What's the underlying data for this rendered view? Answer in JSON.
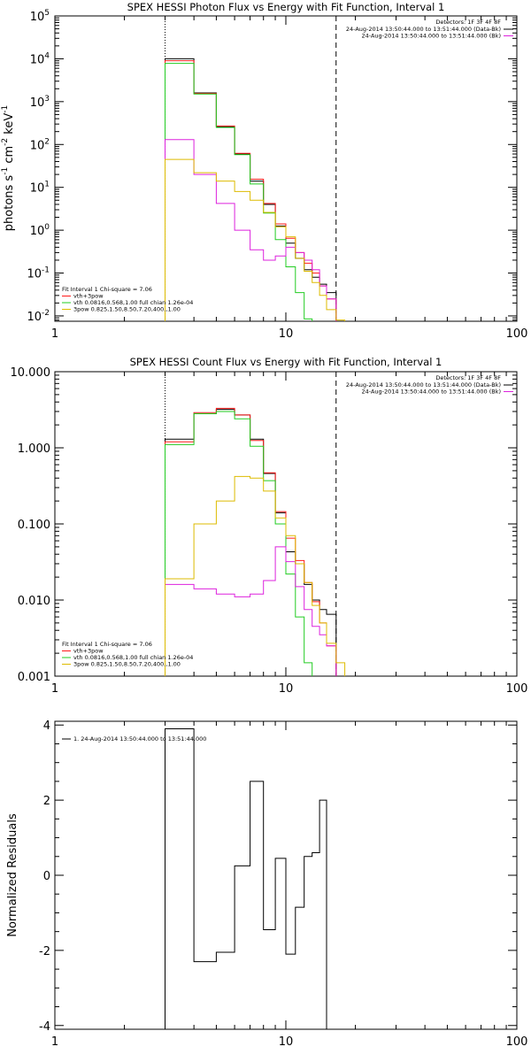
{
  "chart_data": [
    {
      "type": "line",
      "title": "SPEX HESSI Photon Flux vs Energy with Fit Function, Interval 1",
      "xlabel": "",
      "ylabel": "photons s",
      "ylabel_sup": [
        "-1",
        "-2",
        "-1"
      ],
      "ylabel_parts": [
        "cm",
        "keV"
      ],
      "xscale": "log",
      "yscale": "log",
      "xlim": [
        1,
        100
      ],
      "ylim": [
        0.0075,
        100000
      ],
      "xticks": [
        {
          "value": 1,
          "label": "1"
        },
        {
          "value": 10,
          "label": "10"
        },
        {
          "value": 100,
          "label": "100"
        }
      ],
      "yticks": [
        {
          "value": 0.01,
          "base": "10",
          "exp": "-2"
        },
        {
          "value": 0.1,
          "base": "10",
          "exp": "-1"
        },
        {
          "value": 1,
          "base": "10",
          "exp": "0"
        },
        {
          "value": 10,
          "base": "10",
          "exp": "1"
        },
        {
          "value": 100,
          "base": "10",
          "exp": "2"
        },
        {
          "value": 1000,
          "base": "10",
          "exp": "3"
        },
        {
          "value": 10000,
          "base": "10",
          "exp": "4"
        },
        {
          "value": 100000,
          "base": "10",
          "exp": "5"
        }
      ],
      "vlines": [
        {
          "x": 3.0,
          "style": "dotted",
          "color": "#000000"
        },
        {
          "x": 16.5,
          "style": "dashed",
          "color": "#000000"
        }
      ],
      "bin_edges": [
        3.0,
        4.0,
        5.0,
        6.0,
        7.0,
        8.0,
        9.0,
        10.0,
        11.0,
        12.0,
        13.0,
        14.0,
        15.0,
        16.5,
        18.0
      ],
      "series": [
        {
          "name": "",
          "color": "#000000",
          "values": [
            10000,
            1600,
            260,
            60,
            14,
            4,
            1.25,
            0.5,
            0.22,
            0.12,
            0.08,
            0.055,
            0.035,
            null
          ]
        },
        {
          "name": "",
          "color": "#ff1a1a",
          "values": [
            9000,
            1550,
            270,
            62,
            15.5,
            4.2,
            1.4,
            0.65,
            0.3,
            0.17,
            0.1,
            0.05,
            0.025,
            null
          ]
        },
        {
          "name": "",
          "color": "#22cc22",
          "values": [
            7800,
            1500,
            250,
            58,
            12,
            2.5,
            0.6,
            0.14,
            0.035,
            0.0085,
            null,
            null,
            null,
            null
          ]
        },
        {
          "name": "",
          "color": "#dd22dd",
          "values": [
            130,
            20,
            4.2,
            1.0,
            0.35,
            0.2,
            0.25,
            0.4,
            0.3,
            0.2,
            0.12,
            0.05,
            0.025,
            null
          ]
        },
        {
          "name": "",
          "color": "#ddbb00",
          "values": [
            45,
            22,
            14,
            8,
            5,
            2.6,
            1.2,
            0.7,
            0.22,
            0.11,
            0.06,
            0.03,
            0.014,
            0.008
          ]
        }
      ],
      "legend_right": {
        "header": "Detectors: 1F 3F 4F 8F",
        "lines": [
          {
            "text": "24-Aug-2014 13:50:44.000 to 13:51:44.000 (Data-Bk)",
            "color": "#000000"
          },
          {
            "text": "24-Aug-2014 13:50:44.000 to 13:51:44.000 (Bk)",
            "color": "#dd22dd"
          }
        ]
      },
      "legend_left": {
        "header": "Fit Interval  1    Chi-square = 7.06",
        "lines": [
          {
            "text": "vth+3pow",
            "color": "#ff1a1a"
          },
          {
            "text": "vth 0.0816,0.568,1.00  full chian 1.26e-04",
            "color": "#22cc22"
          },
          {
            "text": "3pow 0.825,1.50,8.50,7.20,400.,1.00",
            "color": "#ddbb00"
          }
        ]
      }
    },
    {
      "type": "line",
      "title": "SPEX HESSI Count Flux vs Energy with Fit Function, Interval 1",
      "xlabel": "",
      "ylabel": "",
      "xscale": "log",
      "yscale": "log",
      "xlim": [
        1,
        100
      ],
      "ylim": [
        0.001,
        10
      ],
      "xticks": [
        {
          "value": 1,
          "label": "1"
        },
        {
          "value": 10,
          "label": "10"
        },
        {
          "value": 100,
          "label": "100"
        }
      ],
      "yticks": [
        {
          "value": 0.001,
          "label": "0.001"
        },
        {
          "value": 0.01,
          "label": "0.010"
        },
        {
          "value": 0.1,
          "label": "0.100"
        },
        {
          "value": 1,
          "label": "1.000"
        },
        {
          "value": 10,
          "label": "10.000"
        }
      ],
      "vlines": [
        {
          "x": 3.0,
          "style": "dotted",
          "color": "#000000"
        },
        {
          "x": 16.5,
          "style": "dashed",
          "color": "#000000"
        }
      ],
      "bin_edges": [
        3.0,
        4.0,
        5.0,
        6.0,
        7.0,
        8.0,
        9.0,
        10.0,
        11.0,
        12.0,
        13.0,
        14.0,
        15.0,
        16.5,
        18.0
      ],
      "series": [
        {
          "name": "",
          "color": "#000000",
          "values": [
            1.3,
            2.8,
            3.2,
            2.7,
            1.3,
            0.46,
            0.14,
            0.043,
            0.03,
            0.016,
            0.01,
            0.0075,
            0.0065,
            null
          ]
        },
        {
          "name": "",
          "color": "#ff1a1a",
          "values": [
            1.2,
            2.9,
            3.3,
            2.7,
            1.25,
            0.47,
            0.145,
            0.065,
            0.033,
            0.017,
            0.0095,
            0.005,
            0.0025,
            null
          ]
        },
        {
          "name": "",
          "color": "#22cc22",
          "values": [
            1.1,
            2.8,
            3.0,
            2.4,
            1.05,
            0.37,
            0.1,
            0.022,
            0.006,
            0.0015,
            null,
            null,
            null,
            null
          ]
        },
        {
          "name": "",
          "color": "#dd22dd",
          "values": [
            0.016,
            0.014,
            0.012,
            0.011,
            0.012,
            0.018,
            0.05,
            0.032,
            0.015,
            0.0075,
            0.0045,
            0.0035,
            0.0025,
            null
          ]
        },
        {
          "name": "",
          "color": "#ddbb00",
          "values": [
            0.019,
            0.1,
            0.2,
            0.42,
            0.4,
            0.27,
            0.12,
            0.07,
            0.03,
            0.017,
            0.0085,
            0.005,
            0.0027,
            0.0015
          ]
        }
      ],
      "legend_right": {
        "header": "Detectors: 1F 3F 4F 8F",
        "lines": [
          {
            "text": "24-Aug-2014 13:50:44.000 to 13:51:44.000 (Data-Bk)",
            "color": "#000000"
          },
          {
            "text": "24-Aug-2014 13:50:44.000 to 13:51:44.000 (Bk)",
            "color": "#dd22dd"
          }
        ]
      },
      "legend_left": {
        "header": "Fit Interval  1    Chi-square = 7.06",
        "lines": [
          {
            "text": "vth+3pow",
            "color": "#ff1a1a"
          },
          {
            "text": "vth 0.0816,0.568,1.00  full chian 1.26e-04",
            "color": "#22cc22"
          },
          {
            "text": "3pow 0.825,1.50,8.50,7.20,400.,1.00",
            "color": "#ddbb00"
          }
        ]
      }
    },
    {
      "type": "line",
      "title": "",
      "xlabel": "",
      "ylabel": "Normalized Residuals",
      "xscale": "log",
      "yscale": "linear",
      "xlim": [
        1,
        100
      ],
      "ylim": [
        -4.1,
        4.1
      ],
      "xticks": [
        {
          "value": 1,
          "label": "1"
        },
        {
          "value": 10,
          "label": "10"
        },
        {
          "value": 100,
          "label": "100"
        }
      ],
      "yticks": [
        {
          "value": -4,
          "label": "-4"
        },
        {
          "value": -2,
          "label": "-2"
        },
        {
          "value": 0,
          "label": "0"
        },
        {
          "value": 2,
          "label": "2"
        },
        {
          "value": 4,
          "label": "4"
        }
      ],
      "bin_edges": [
        3.0,
        4.0,
        5.0,
        6.0,
        7.0,
        8.0,
        9.0,
        10.0,
        11.0,
        12.0,
        13.0,
        14.0,
        15.0,
        16.5
      ],
      "series": [
        {
          "name": "1. 24-Aug-2014 13:50:44.000 to 13:51:44.000",
          "color": "#000000",
          "values": [
            3.9,
            -2.3,
            -2.05,
            0.25,
            2.5,
            -1.45,
            0.45,
            -2.1,
            -0.85,
            0.5,
            0.6,
            2.0,
            null
          ]
        }
      ],
      "legend_left": {
        "header": "",
        "lines": [
          {
            "text": "1. 24-Aug-2014 13:50:44.000 to 13:51:44.000",
            "color": "#000000"
          }
        ]
      }
    }
  ]
}
